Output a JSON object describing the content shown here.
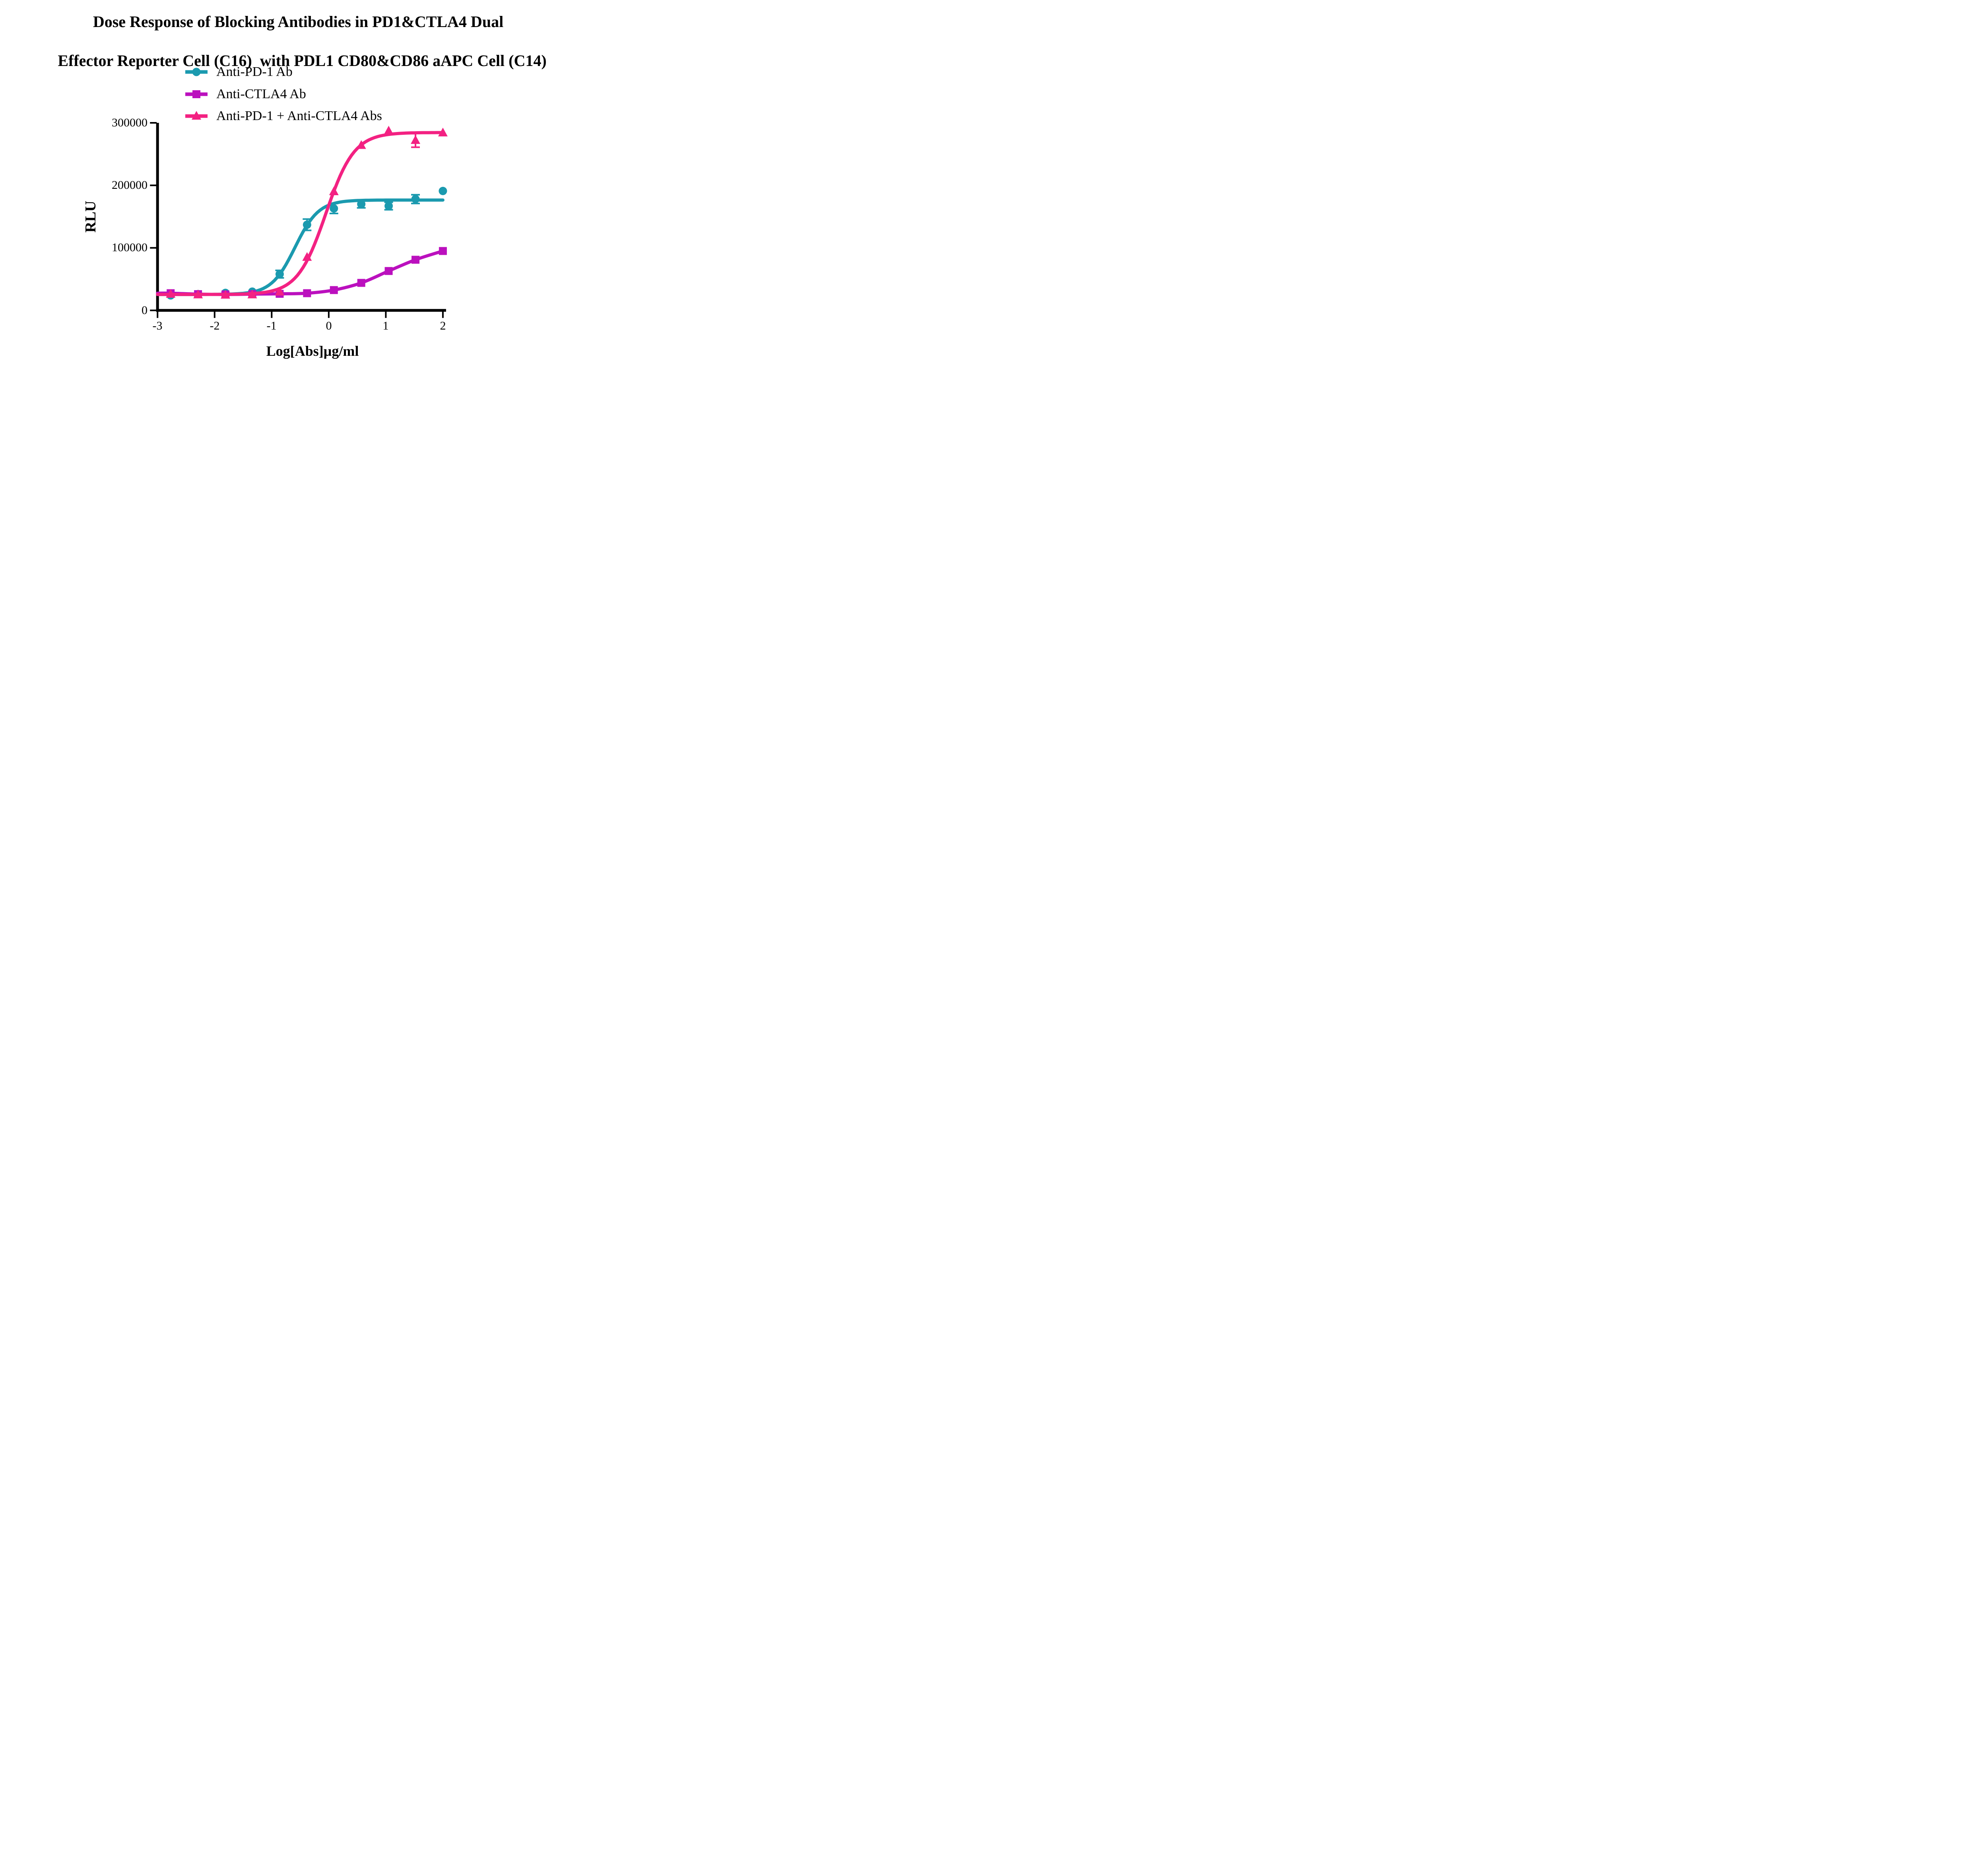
{
  "title": {
    "line1": "Dose Response of Blocking Antibodies in PD1&CTLA4 Dual",
    "line2": "Effector Reporter Cell (C16)  with PDL1 CD80&CD86 aAPC Cell (C14)"
  },
  "legend": [
    {
      "label": "Anti-PD-1 Ab",
      "color": "#1B9AAF",
      "marker": "circle"
    },
    {
      "label": "Anti-CTLA4 Ab",
      "color": "#BB10BE",
      "marker": "square"
    },
    {
      "label": "Anti-PD-1 + Anti-CTLA4 Abs",
      "color": "#F32182",
      "marker": "triangle"
    }
  ],
  "axes": {
    "y_label": "RLU",
    "x_label": "Log[Abs]µg/ml",
    "y_tick_labels": [
      "0",
      "100000",
      "200000",
      "300000"
    ],
    "x_tick_labels": [
      "-3",
      "-2",
      "-1",
      "0",
      "1",
      "2"
    ],
    "axis_color": "#000000"
  },
  "chart_data": {
    "type": "line",
    "title": "Dose Response of Blocking Antibodies in PD1&CTLA4 Dual Effector Reporter Cell (C16) with PDL1 CD80&CD86 aAPC Cell (C14)",
    "xlabel": "Log[Abs]µg/ml",
    "ylabel": "RLU",
    "xlim": [
      -3,
      2
    ],
    "ylim": [
      0,
      300000
    ],
    "x_ticks": [
      -3,
      -2,
      -1,
      0,
      1,
      2
    ],
    "y_ticks": [
      0,
      100000,
      200000,
      300000
    ],
    "grid": false,
    "legend_position": "top-left-above-plot",
    "x": [
      -2.77,
      -2.29,
      -1.81,
      -1.34,
      -0.86,
      -0.38,
      0.09,
      0.57,
      1.05,
      1.52,
      2.0
    ],
    "series": [
      {
        "name": "Anti-PD-1 Ab",
        "color": "#1B9AAF",
        "marker": "circle",
        "values": [
          24000,
          26000,
          28000,
          30000,
          58000,
          137000,
          163000,
          170000,
          167000,
          178000,
          191000
        ],
        "errors": [
          null,
          null,
          null,
          null,
          6000,
          9000,
          8000,
          6000,
          6000,
          7000,
          null
        ],
        "fit": {
          "bottom": 25500,
          "top": 176500,
          "logec50": -0.59,
          "hill": 2.1
        }
      },
      {
        "name": "Anti-CTLA4 Ab",
        "color": "#BB10BE",
        "marker": "square",
        "values": [
          27500,
          26000,
          25500,
          26000,
          26500,
          27500,
          32500,
          44000,
          63000,
          81000,
          95000
        ],
        "errors": [
          null,
          null,
          null,
          null,
          null,
          null,
          null,
          null,
          null,
          null,
          null
        ],
        "fit": null
      },
      {
        "name": "Anti-PD-1 + Anti-CTLA4 Abs",
        "color": "#F32182",
        "marker": "triangle",
        "values": [
          26000,
          25000,
          24500,
          25000,
          29500,
          85000,
          190000,
          264000,
          287000,
          272000,
          284000
        ],
        "errors": [
          null,
          null,
          null,
          null,
          null,
          null,
          null,
          null,
          null,
          11000,
          null
        ],
        "fit": {
          "bottom": 25500,
          "top": 284500,
          "logec50": -0.05,
          "hill": 1.75
        }
      }
    ]
  }
}
